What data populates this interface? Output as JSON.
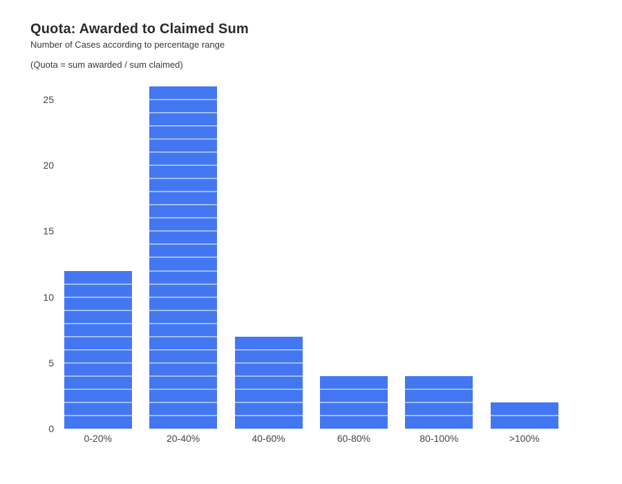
{
  "chart_data": {
    "type": "bar",
    "title": "Quota: Awarded to Claimed Sum",
    "subtitle": "Number of Cases according to percentage range",
    "note": "(Quota = sum awarded / sum claimed)",
    "categories": [
      "0-20%",
      "20-40%",
      "40-60%",
      "60-80%",
      "80-100%",
      ">100%"
    ],
    "values": [
      12,
      26,
      7,
      4,
      4,
      2
    ],
    "xlabel": "",
    "ylabel": "",
    "yticks": [
      0,
      5,
      10,
      15,
      20,
      25
    ],
    "ylim": [
      0,
      26.5
    ],
    "legend_position": "none",
    "bar_color": "#4377f2",
    "unit_gridline_color": "rgba(255,255,255,0.5)",
    "gridline_note": "white gridlines at every integer unit, visible only where they cross bars",
    "background_color": "#ffffff",
    "text_color": "#2a2a2a",
    "axis_label_color": "#444444"
  }
}
